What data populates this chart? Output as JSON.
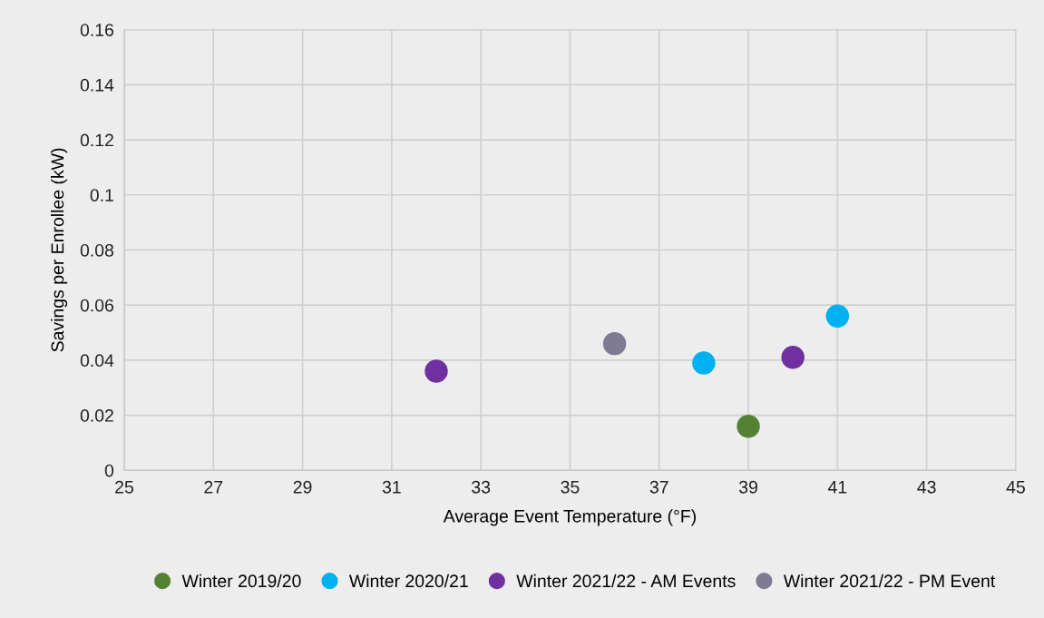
{
  "chart_data": {
    "type": "scatter",
    "xlabel": "Average Event Temperature (°F)",
    "ylabel": "Savings per Enrollee (kW)",
    "series": [
      {
        "name": "Winter 2019/20",
        "color": "#548235",
        "x": [
          39
        ],
        "values": [
          0.016
        ]
      },
      {
        "name": "Winter 2020/21",
        "color": "#00b0f0",
        "x": [
          38,
          41
        ],
        "values": [
          0.039,
          0.056
        ]
      },
      {
        "name": "Winter 2021/22 - AM Events",
        "color": "#7030a0",
        "x": [
          32,
          40
        ],
        "values": [
          0.036,
          0.041
        ]
      },
      {
        "name": "Winter 2021/22 - PM Event",
        "color": "#7f7b92",
        "x": [
          36
        ],
        "values": [
          0.046
        ]
      }
    ],
    "xlim": [
      25,
      45
    ],
    "xticks": [
      25,
      27,
      29,
      31,
      33,
      35,
      37,
      39,
      41,
      43,
      45
    ],
    "ylim": [
      0,
      0.16
    ],
    "yticks": [
      0,
      0.02,
      0.04,
      0.06,
      0.08,
      0.1,
      0.12,
      0.14,
      0.16
    ],
    "grid": true,
    "legend": "bottom",
    "marker": "circle"
  }
}
